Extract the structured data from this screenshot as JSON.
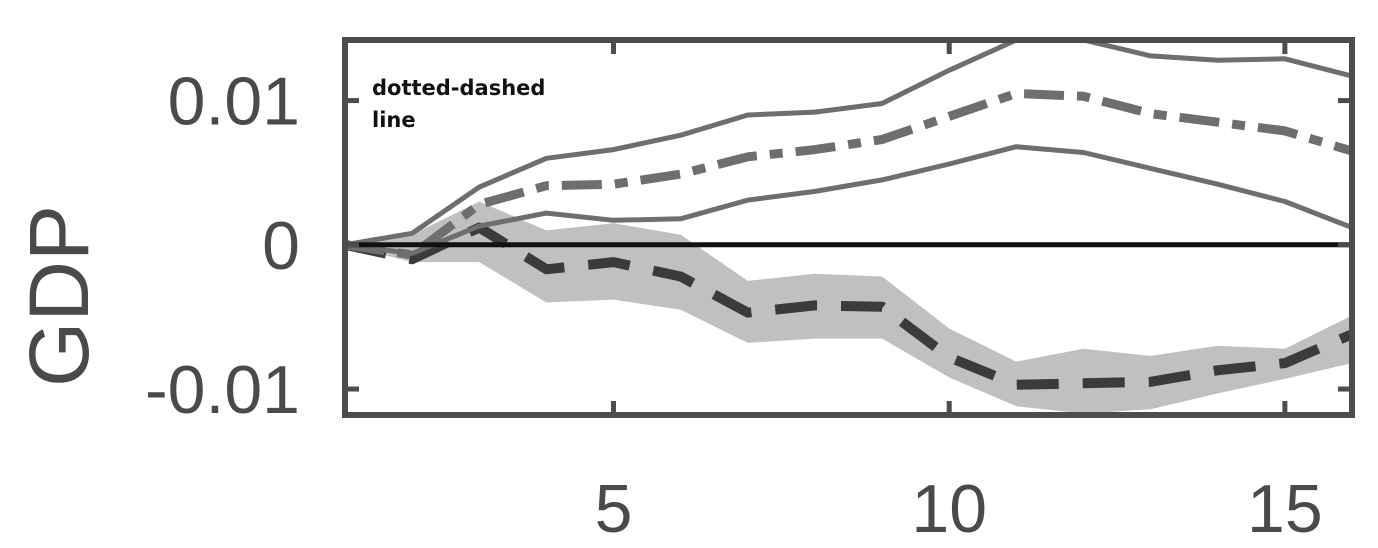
{
  "chart_data": {
    "type": "line",
    "title": "",
    "xlabel": "",
    "ylabel": "GDP",
    "xlim": [
      1,
      16
    ],
    "ylim": [
      -0.0118,
      0.0142
    ],
    "x_ticks": [
      {
        "value": 5,
        "label": "5"
      },
      {
        "value": 10,
        "label": "10"
      },
      {
        "value": 15,
        "label": "15"
      }
    ],
    "y_ticks": [
      {
        "value": 0.01,
        "label": "0.01"
      },
      {
        "value": 0,
        "label": "0"
      },
      {
        "value": -0.01,
        "label": "-0.01"
      }
    ],
    "grid": false,
    "annotation": [
      "dotted-dashed",
      "line"
    ],
    "x": [
      1,
      2,
      3,
      4,
      5,
      6,
      7,
      8,
      9,
      10,
      11,
      12,
      13,
      14,
      15,
      16
    ],
    "zero_line": 0,
    "band": {
      "upper": [
        0,
        0.0007,
        0.003,
        0.001,
        0.0015,
        0.0007,
        -0.0025,
        -0.002,
        -0.0022,
        -0.0058,
        -0.0081,
        -0.0072,
        -0.0077,
        -0.007,
        -0.0072,
        -0.0049
      ],
      "lower": [
        0,
        -0.0012,
        -0.0012,
        -0.004,
        -0.0038,
        -0.0045,
        -0.0068,
        -0.0065,
        -0.0065,
        -0.0092,
        -0.0112,
        -0.0117,
        -0.0114,
        -0.0103,
        -0.0093,
        -0.0082
      ]
    },
    "series": [
      {
        "style": "dashed-dark",
        "values": [
          0,
          -0.001,
          0.0012,
          -0.0017,
          -0.0012,
          -0.0022,
          -0.0047,
          -0.0042,
          -0.0043,
          -0.0078,
          -0.0097,
          -0.0096,
          -0.0095,
          -0.0087,
          -0.0082,
          -0.0062
        ]
      },
      {
        "style": "dashdot",
        "values": [
          0,
          -0.0007,
          0.0028,
          0.0041,
          0.0042,
          0.0049,
          0.0061,
          0.0066,
          0.0073,
          0.0089,
          0.0105,
          0.0103,
          0.0091,
          0.0085,
          0.0079,
          0.0065
        ]
      },
      {
        "style": "solid-upper",
        "values": [
          0,
          0.0008,
          0.004,
          0.006,
          0.0066,
          0.0076,
          0.009,
          0.0092,
          0.0098,
          0.0121,
          0.0142,
          0.0142,
          0.0131,
          0.0128,
          0.0129,
          0.0117
        ]
      },
      {
        "style": "solid-lower",
        "values": [
          0,
          -0.0006,
          0.0013,
          0.0022,
          0.0017,
          0.0018,
          0.0031,
          0.0037,
          0.0045,
          0.0056,
          0.0068,
          0.0064,
          0.0053,
          0.0042,
          0.003,
          0.0012
        ]
      }
    ],
    "colors": {
      "axis": "#4d4d4d",
      "band": "#c0c0c0",
      "dashed": "#3b3b3b",
      "dashdot": "#6e6e6e",
      "solid": "#6e6e6e",
      "zero": "#111111",
      "text": "#4a4a4a"
    }
  }
}
